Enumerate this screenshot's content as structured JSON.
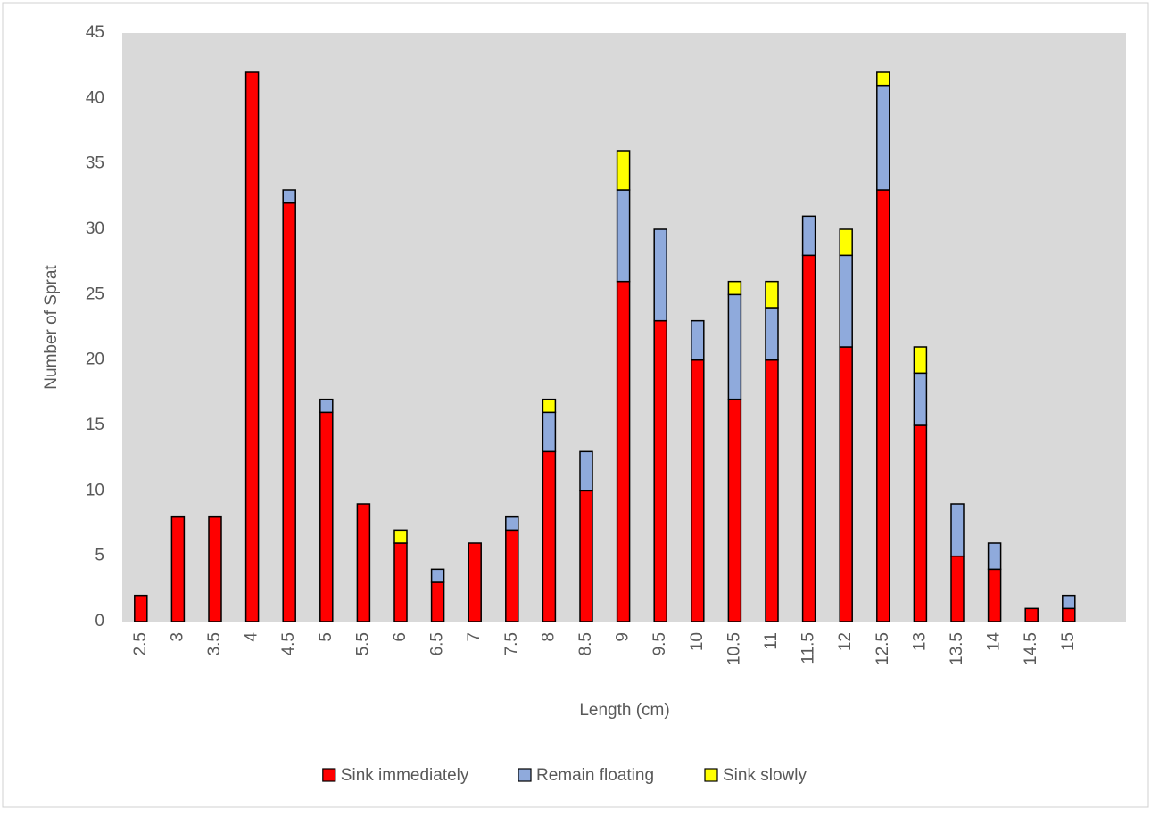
{
  "chart_data": {
    "type": "stacked_bar",
    "x_label": "Length (cm)",
    "y_label": "Number of Sprat",
    "categories": [
      "2.5",
      "3",
      "3.5",
      "4",
      "4.5",
      "5",
      "5.5",
      "6",
      "6.5",
      "7",
      "7.5",
      "8",
      "8.5",
      "9",
      "9.5",
      "10",
      "10.5",
      "11",
      "11.5",
      "12",
      "12.5",
      "13",
      "13.5",
      "14",
      "14.5",
      "15"
    ],
    "series": [
      {
        "name": "Sink immediately",
        "color": "#ff0000",
        "values": [
          2,
          8,
          8,
          42,
          32,
          16,
          9,
          6,
          3,
          6,
          7,
          13,
          10,
          26,
          23,
          20,
          17,
          20,
          28,
          21,
          33,
          15,
          5,
          4,
          1,
          1
        ]
      },
      {
        "name": "Remain floating",
        "color": "#8faadc",
        "values": [
          0,
          0,
          0,
          0,
          1,
          1,
          0,
          0,
          1,
          0,
          1,
          3,
          3,
          7,
          7,
          3,
          8,
          4,
          3,
          7,
          8,
          4,
          4,
          2,
          0,
          1
        ]
      },
      {
        "name": "Sink slowly",
        "color": "#ffff00",
        "values": [
          0,
          0,
          0,
          0,
          0,
          0,
          0,
          1,
          0,
          0,
          0,
          1,
          0,
          3,
          0,
          0,
          1,
          2,
          0,
          2,
          1,
          2,
          0,
          0,
          0,
          0
        ]
      }
    ],
    "ylim": [
      0,
      45
    ],
    "yticks": [
      0,
      5,
      10,
      15,
      20,
      25,
      30,
      35,
      40,
      45
    ],
    "grid": false,
    "legend": "bottom"
  }
}
